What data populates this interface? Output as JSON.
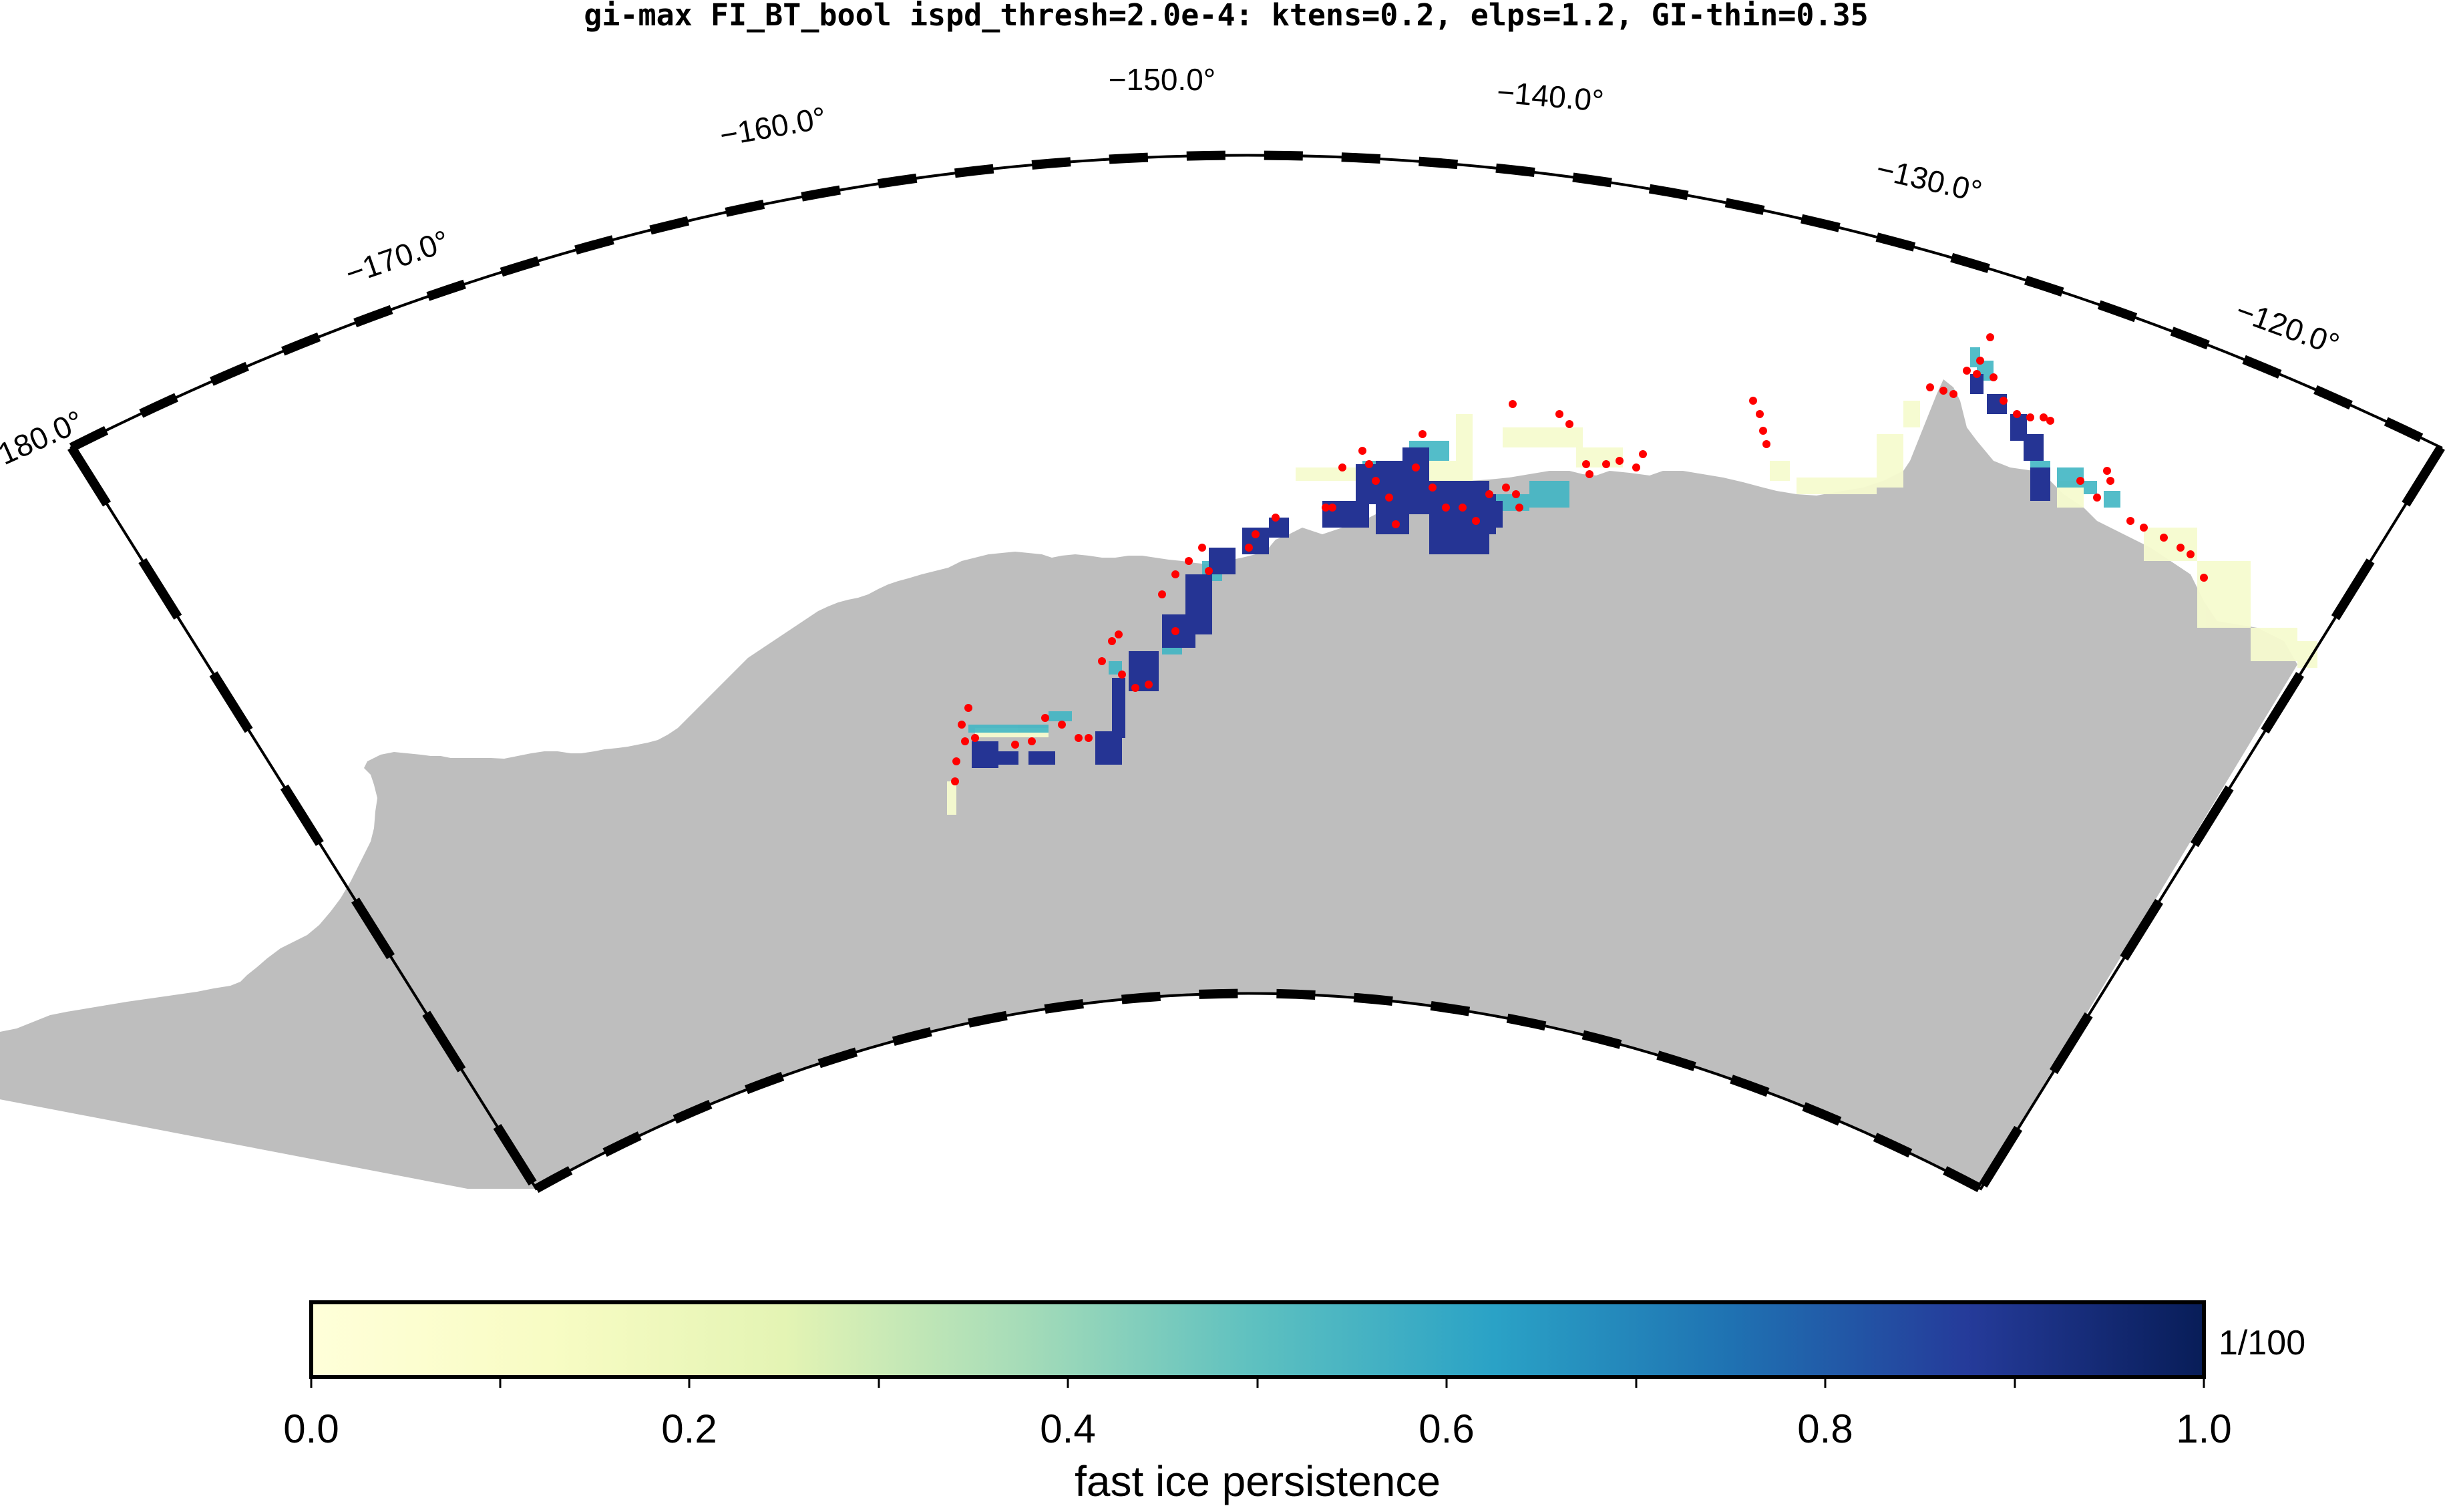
{
  "title": "gi-max FI_BT_bool ispd_thresh=2.0e-4: ktens=0.2, elps=1.2, GI-thin=0.35",
  "map": {
    "projection": "polar-stereographic south, sector view",
    "lon_range": [
      -180,
      -115
    ],
    "lon_labels": [
      "−180.0°",
      "−170.0°",
      "−160.0°",
      "−150.0°",
      "−140.0°",
      "−130.0°",
      "−120.0°"
    ],
    "land_color": "#bebebe",
    "grounded_iceberg_marker_color": "#ff0000"
  },
  "colorbar": {
    "label": "fast ice persistence",
    "unit": "1/100",
    "range": [
      0.0,
      1.0
    ],
    "tick_labels": [
      "0.0",
      "0.2",
      "0.4",
      "0.6",
      "0.8",
      "1.0"
    ],
    "colormap": "YlGnBu",
    "colors": [
      "#ffffd9",
      "#edf8b1",
      "#c7e9b4",
      "#7fcdbb",
      "#41b6c4",
      "#1d91c0",
      "#225ea8",
      "#253494",
      "#081d58"
    ]
  }
}
